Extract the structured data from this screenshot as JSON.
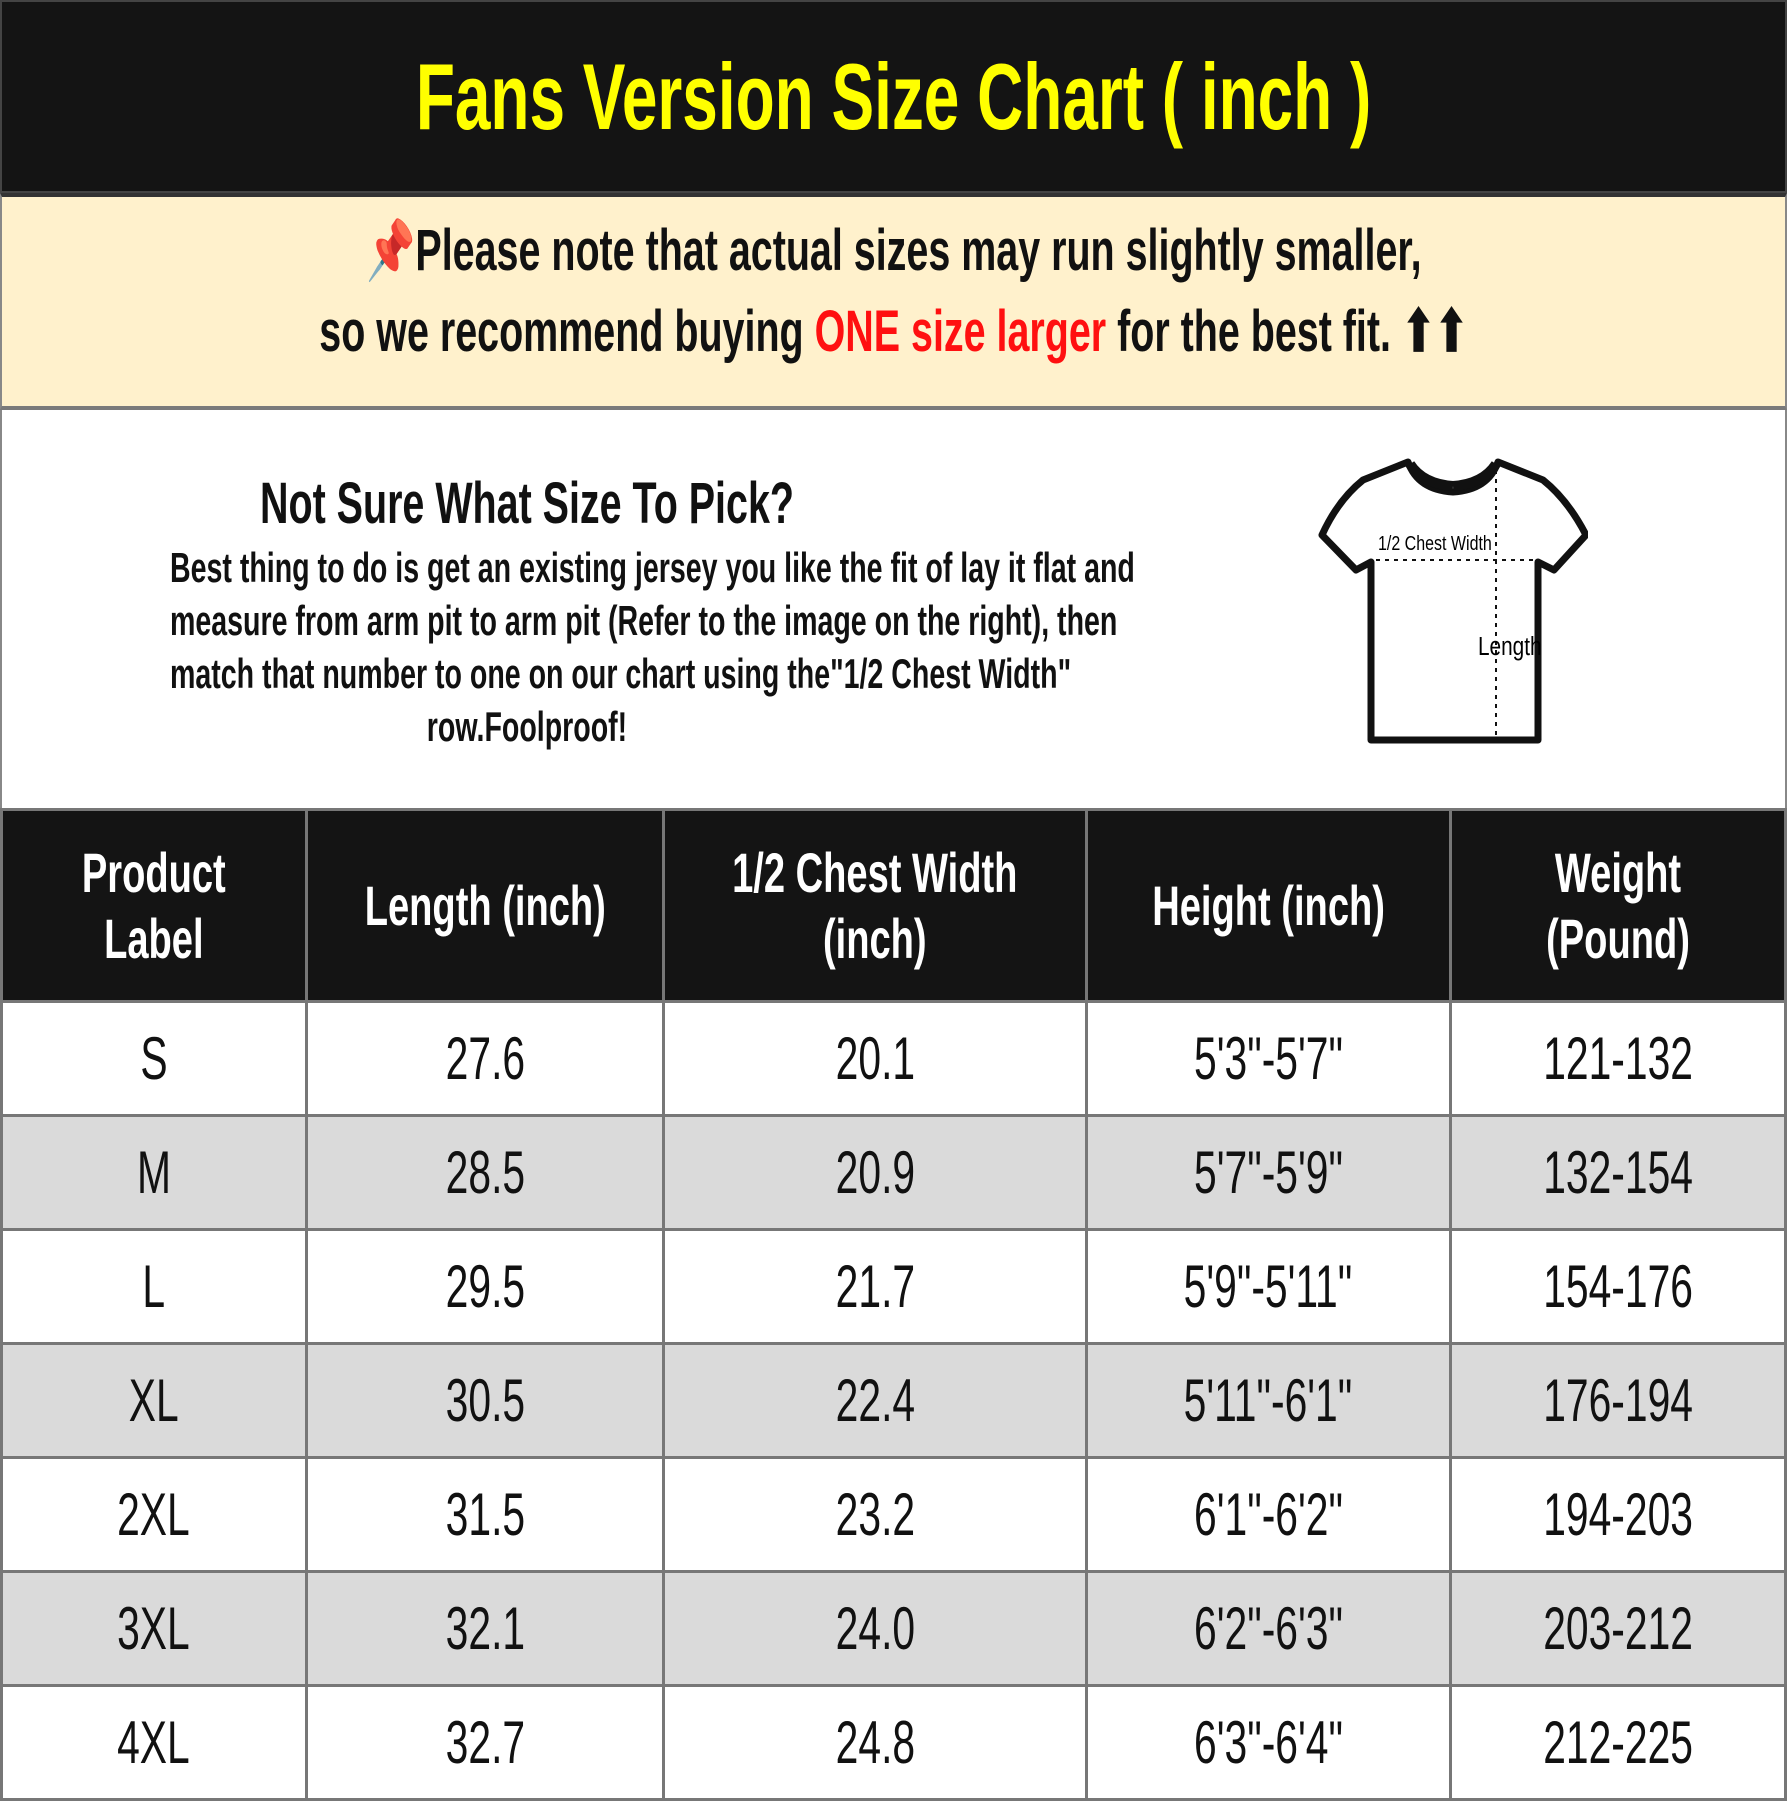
{
  "title": "Fans Version Size Chart ( inch )",
  "notice": {
    "icon": "pushpin-icon",
    "line1": "Please note that actual sizes may run slightly smaller,",
    "line2_a": "so we recommend buying ",
    "line2_highlight": "ONE size larger",
    "line2_b": " for the best fit. ",
    "arrows": "⬆⬆",
    "highlight_color": "#ff1010"
  },
  "info": {
    "heading": "Not Sure What Size To Pick?",
    "lines": [
      "Best thing to do is get an existing jersey you like the fit of lay it flat and",
      "measure from arm pit to arm pit (Refer to the image on the right), then",
      "match that number to one on our chart using the\"1/2 Chest Width\"",
      "row.Foolproof!"
    ],
    "diagram": {
      "chest_label": "1/2 Chest Width",
      "length_label": "Length"
    }
  },
  "table": {
    "headers": [
      [
        "Product",
        "Label"
      ],
      [
        "Length (inch)"
      ],
      [
        "1/2 Chest Width",
        "(inch)"
      ],
      [
        "Height (inch)"
      ],
      [
        "Weight",
        "(Pound)"
      ]
    ],
    "rows": [
      [
        "S",
        "27.6",
        "20.1",
        "5'3\"-5'7\"",
        "121-132"
      ],
      [
        "M",
        "28.5",
        "20.9",
        "5'7\"-5'9\"",
        "132-154"
      ],
      [
        "L",
        "29.5",
        "21.7",
        "5'9\"-5'11\"",
        "154-176"
      ],
      [
        "XL",
        "30.5",
        "22.4",
        "5'11\"-6'1\"",
        "176-194"
      ],
      [
        "2XL",
        "31.5",
        "23.2",
        "6'1\"-6'2\"",
        "194-203"
      ],
      [
        "3XL",
        "32.1",
        "24.0",
        "6'2\"-6'3\"",
        "203-212"
      ],
      [
        "4XL",
        "32.7",
        "24.8",
        "6'3\"-6'4\"",
        "212-225"
      ]
    ]
  }
}
